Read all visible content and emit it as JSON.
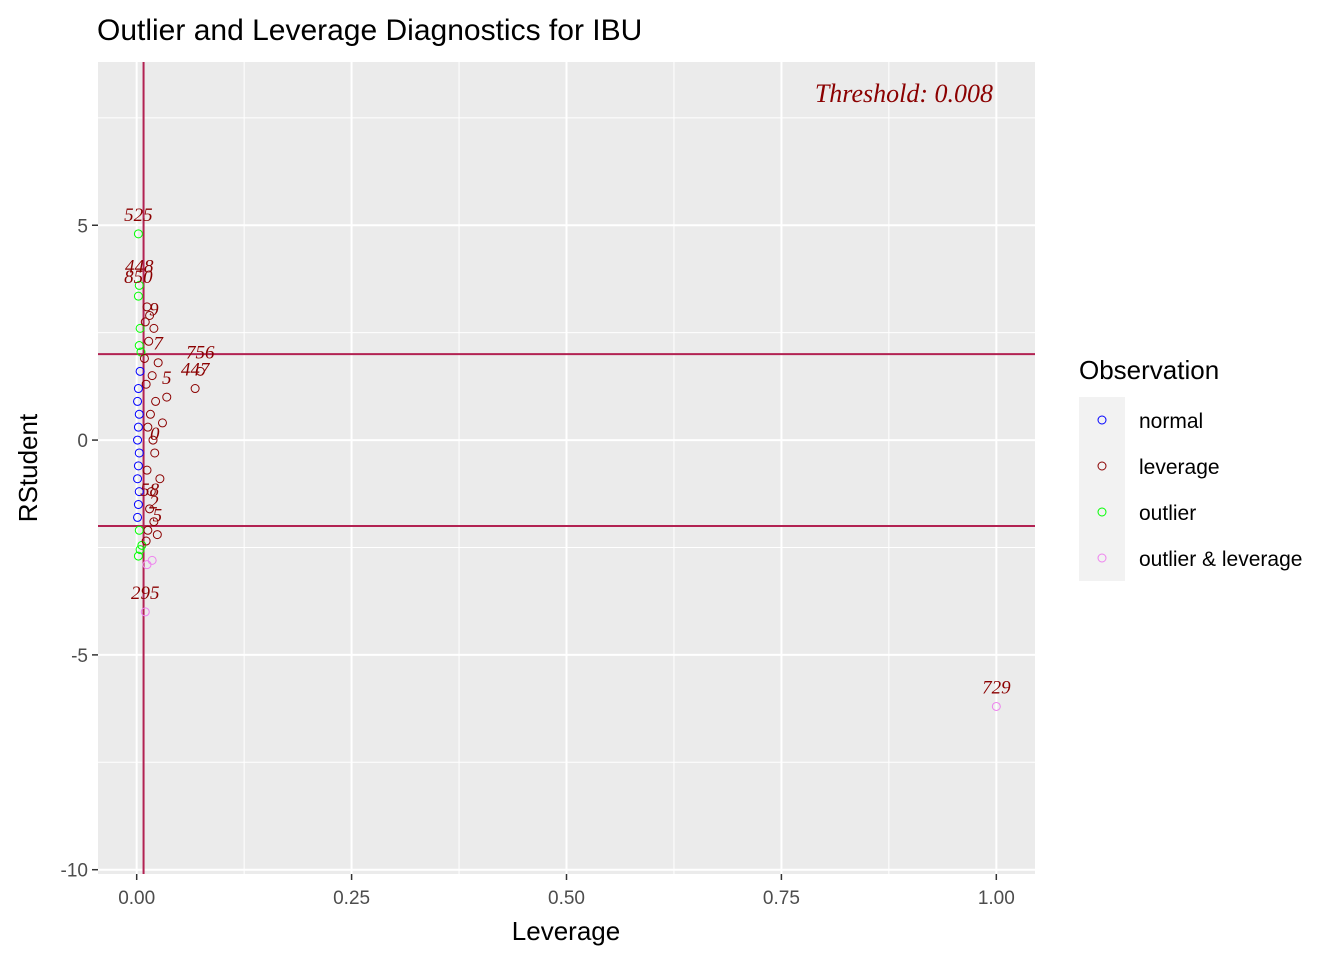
{
  "chart_data": {
    "type": "scatter",
    "title": "Outlier and Leverage Diagnostics for IBU",
    "xlabel": "Leverage",
    "ylabel": "RStudent",
    "xlim": [
      -0.045,
      1.045
    ],
    "ylim": [
      -10.1,
      8.8
    ],
    "x_ticks": [
      0.0,
      0.25,
      0.5,
      0.75,
      1.0
    ],
    "x_tick_labels": [
      "0.00",
      "0.25",
      "0.50",
      "0.75",
      "1.00"
    ],
    "y_ticks": [
      -10,
      -5,
      0,
      5
    ],
    "y_tick_labels": [
      "-10",
      "-5",
      "0",
      "5"
    ],
    "grid": true,
    "reference_lines": {
      "vertical_x": 0.008,
      "horizontal_y": [
        2,
        -2
      ]
    },
    "annotation": "Threshold: 0.008",
    "legend": {
      "title": "Observation",
      "position": "right",
      "entries": [
        {
          "label": "normal",
          "color": "#0000ff"
        },
        {
          "label": "leverage",
          "color": "#8b0000"
        },
        {
          "label": "outlier",
          "color": "#00ff00"
        },
        {
          "label": "outlier & leverage",
          "color": "#ee82ee"
        }
      ]
    },
    "points": [
      {
        "x": 0.002,
        "y": 4.8,
        "group": "outlier",
        "label": "525"
      },
      {
        "x": 0.003,
        "y": 3.6,
        "group": "outlier",
        "label": "448"
      },
      {
        "x": 0.002,
        "y": 3.35,
        "group": "outlier",
        "label": "850"
      },
      {
        "x": 0.004,
        "y": 2.6,
        "group": "outlier",
        "label": ""
      },
      {
        "x": 0.003,
        "y": 2.2,
        "group": "outlier",
        "label": ""
      },
      {
        "x": 0.005,
        "y": 2.05,
        "group": "outlier",
        "label": ""
      },
      {
        "x": 0.004,
        "y": -2.55,
        "group": "outlier",
        "label": ""
      },
      {
        "x": 0.002,
        "y": -2.7,
        "group": "outlier",
        "label": ""
      },
      {
        "x": 0.006,
        "y": -2.45,
        "group": "outlier",
        "label": ""
      },
      {
        "x": 0.003,
        "y": -2.1,
        "group": "outlier",
        "label": ""
      },
      {
        "x": 0.074,
        "y": 1.6,
        "group": "leverage",
        "label": "756"
      },
      {
        "x": 0.068,
        "y": 1.2,
        "group": "leverage",
        "label": "447"
      },
      {
        "x": 0.035,
        "y": 1.0,
        "group": "leverage",
        "label": "5"
      },
      {
        "x": 0.012,
        "y": 3.1,
        "group": "leverage",
        "label": ""
      },
      {
        "x": 0.015,
        "y": 2.9,
        "group": "leverage",
        "label": ""
      },
      {
        "x": 0.01,
        "y": 2.75,
        "group": "leverage",
        "label": ""
      },
      {
        "x": 0.02,
        "y": 2.6,
        "group": "leverage",
        "label": "9"
      },
      {
        "x": 0.014,
        "y": 2.3,
        "group": "leverage",
        "label": ""
      },
      {
        "x": 0.025,
        "y": 1.8,
        "group": "leverage",
        "label": "7"
      },
      {
        "x": 0.018,
        "y": 1.5,
        "group": "leverage",
        "label": ""
      },
      {
        "x": 0.011,
        "y": 1.3,
        "group": "leverage",
        "label": ""
      },
      {
        "x": 0.022,
        "y": 0.9,
        "group": "leverage",
        "label": ""
      },
      {
        "x": 0.016,
        "y": 0.6,
        "group": "leverage",
        "label": ""
      },
      {
        "x": 0.013,
        "y": 0.3,
        "group": "leverage",
        "label": ""
      },
      {
        "x": 0.019,
        "y": 0.0,
        "group": "leverage",
        "label": ""
      },
      {
        "x": 0.021,
        "y": -0.3,
        "group": "leverage",
        "label": "0"
      },
      {
        "x": 0.012,
        "y": -0.7,
        "group": "leverage",
        "label": ""
      },
      {
        "x": 0.017,
        "y": -1.2,
        "group": "leverage",
        "label": ""
      },
      {
        "x": 0.015,
        "y": -1.6,
        "group": "leverage",
        "label": "58"
      },
      {
        "x": 0.02,
        "y": -1.9,
        "group": "leverage",
        "label": "2"
      },
      {
        "x": 0.013,
        "y": -2.1,
        "group": "leverage",
        "label": ""
      },
      {
        "x": 0.024,
        "y": -2.2,
        "group": "leverage",
        "label": "5"
      },
      {
        "x": 0.011,
        "y": -2.35,
        "group": "leverage",
        "label": ""
      },
      {
        "x": 0.009,
        "y": 1.9,
        "group": "leverage",
        "label": ""
      },
      {
        "x": 0.03,
        "y": 0.4,
        "group": "leverage",
        "label": ""
      },
      {
        "x": 0.027,
        "y": -0.9,
        "group": "leverage",
        "label": ""
      },
      {
        "x": 0.002,
        "y": 1.2,
        "group": "normal",
        "label": ""
      },
      {
        "x": 0.001,
        "y": 0.9,
        "group": "normal",
        "label": ""
      },
      {
        "x": 0.003,
        "y": 0.6,
        "group": "normal",
        "label": ""
      },
      {
        "x": 0.002,
        "y": 0.3,
        "group": "normal",
        "label": ""
      },
      {
        "x": 0.001,
        "y": 0.0,
        "group": "normal",
        "label": ""
      },
      {
        "x": 0.003,
        "y": -0.3,
        "group": "normal",
        "label": ""
      },
      {
        "x": 0.002,
        "y": -0.6,
        "group": "normal",
        "label": ""
      },
      {
        "x": 0.001,
        "y": -0.9,
        "group": "normal",
        "label": ""
      },
      {
        "x": 0.003,
        "y": -1.2,
        "group": "normal",
        "label": ""
      },
      {
        "x": 0.002,
        "y": -1.5,
        "group": "normal",
        "label": ""
      },
      {
        "x": 0.001,
        "y": -1.8,
        "group": "normal",
        "label": ""
      },
      {
        "x": 0.004,
        "y": 1.6,
        "group": "normal",
        "label": ""
      },
      {
        "x": 0.01,
        "y": -4.0,
        "group": "outlier & leverage",
        "label": "295"
      },
      {
        "x": 0.012,
        "y": -2.9,
        "group": "outlier & leverage",
        "label": ""
      },
      {
        "x": 0.018,
        "y": -2.8,
        "group": "outlier & leverage",
        "label": ""
      },
      {
        "x": 1.0,
        "y": -6.2,
        "group": "outlier & leverage",
        "label": "729"
      }
    ]
  }
}
